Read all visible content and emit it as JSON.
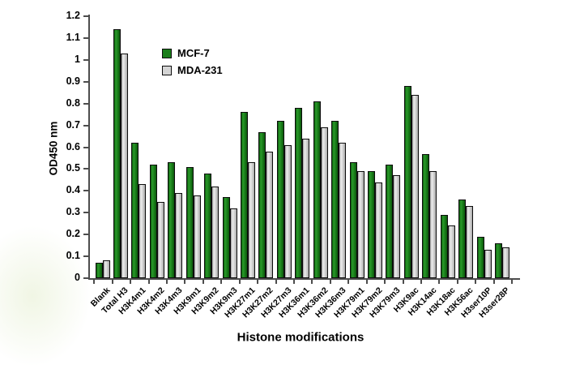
{
  "chart_data": {
    "type": "bar",
    "title": "",
    "xlabel": "Histone modifications",
    "ylabel": "OD450 nm",
    "ylim": [
      0,
      1.2
    ],
    "ytick_labels": [
      "0",
      "0.1",
      "0.2",
      "0.3",
      "0.4",
      "0.5",
      "0.6",
      "0.7",
      "0.8",
      "0.9",
      "1",
      "1.1",
      "1.2"
    ],
    "grid": false,
    "legend_position": "top-left-inside",
    "categories": [
      "Blank",
      "Total H3",
      "H3K4m1",
      "H3K4m2",
      "H3K4m3",
      "H3K9m1",
      "H3K9m2",
      "H3K9m3",
      "H3K27m1",
      "H3K27m2",
      "H3K27m3",
      "H3K36m1",
      "H3K36m2",
      "H3K36m3",
      "H3K79m1",
      "H3K79m2",
      "H3K79m3",
      "H3K9ac",
      "H3K14ac",
      "H3K18ac",
      "H3K56ac",
      "H3ser10P",
      "H3ser28P"
    ],
    "series": [
      {
        "name": "MCF-7",
        "color": "#1a7e1a",
        "values": [
          0.07,
          1.14,
          0.62,
          0.52,
          0.53,
          0.51,
          0.48,
          0.37,
          0.76,
          0.67,
          0.72,
          0.78,
          0.81,
          0.72,
          0.53,
          0.49,
          0.52,
          0.88,
          0.57,
          0.29,
          0.36,
          0.19,
          0.16
        ]
      },
      {
        "name": "MDA-231",
        "color": "#d4d4d4",
        "values": [
          0.08,
          1.03,
          0.43,
          0.35,
          0.39,
          0.38,
          0.42,
          0.32,
          0.53,
          0.58,
          0.61,
          0.64,
          0.69,
          0.62,
          0.49,
          0.44,
          0.47,
          0.84,
          0.49,
          0.24,
          0.33,
          0.13,
          0.14
        ]
      }
    ]
  },
  "colors": {
    "axis": "#4d4d4d",
    "bar_border": "#0d0d0d",
    "text": "#000000",
    "background": "#ffffff"
  }
}
